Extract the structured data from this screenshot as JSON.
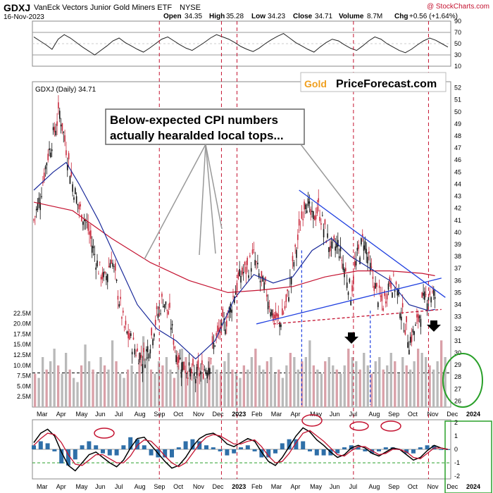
{
  "header": {
    "ticker": "GDXJ",
    "name": "VanEck Vectors Junior Gold Miners ETF",
    "exchange": "NYSE",
    "watermark": "@ StockCharts.com",
    "date": "16-Nov-2023",
    "open_label": "Open",
    "open": "34.35",
    "high_label": "High",
    "high": "35.28",
    "low_label": "Low",
    "low": "34.23",
    "close_label": "Close",
    "close": "34.71",
    "volume_label": "Volume",
    "volume": "8.7M",
    "chg_label": "Chg",
    "chg": "+0.56 (+1.64%)"
  },
  "logo": {
    "part1": "Gold",
    "part2": "PriceForecast.com"
  },
  "price_label": "GDXJ (Daily) 34.71",
  "annotation": "Below-expected CPI numbers\nactually hearalded local tops...",
  "colors": {
    "up": "#c8283c",
    "down": "#111111",
    "ma50": "#1a2a9a",
    "ma200": "#c41230",
    "trend": "#1f3fe0",
    "circle": "#2aa02a",
    "cpi": "#c41230"
  },
  "chart_data": [
    {
      "type": "line",
      "panel": "rsi",
      "y_ticks": [
        90,
        70,
        50,
        30,
        10
      ],
      "levels": [
        70,
        30
      ],
      "ylim": [
        10,
        90
      ],
      "values": [
        62,
        55,
        48,
        40,
        58,
        66,
        60,
        52,
        44,
        37,
        30,
        38,
        46,
        55,
        60,
        52,
        46,
        40,
        35,
        42,
        50,
        58,
        62,
        55,
        48,
        42,
        38,
        45,
        52,
        60,
        66,
        62,
        58,
        52,
        45,
        40,
        36,
        42,
        50,
        57,
        63,
        68,
        60,
        52,
        46,
        40,
        35,
        44,
        52,
        58,
        55,
        48,
        42,
        38,
        46,
        55,
        62,
        58,
        50,
        44,
        38,
        34,
        40,
        48,
        55,
        60,
        56,
        50,
        44
      ]
    },
    {
      "type": "candlestick",
      "panel": "price",
      "title": "GDXJ (Daily) 34.71",
      "y_ticks": [
        52,
        51,
        50,
        49,
        48,
        47,
        46,
        45,
        44,
        43,
        42,
        41,
        40,
        39,
        38,
        37,
        36,
        35,
        34,
        33,
        32,
        31,
        30,
        29,
        28,
        27,
        26
      ],
      "ylim": [
        25.5,
        52.5
      ],
      "x_labels": [
        "Mar",
        "Apr",
        "May",
        "Jun",
        "Jul",
        "Aug",
        "Sep",
        "Oct",
        "Nov",
        "Dec",
        "2023",
        "Feb",
        "Mar",
        "Apr",
        "May",
        "Jun",
        "Jul",
        "Aug",
        "Sep",
        "Oct",
        "Nov",
        "Dec",
        "2024"
      ],
      "close_path": [
        [
          0,
          41
        ],
        [
          5,
          43
        ],
        [
          10,
          46
        ],
        [
          15,
          48
        ],
        [
          20,
          50
        ],
        [
          25,
          47
        ],
        [
          30,
          44
        ],
        [
          35,
          42
        ],
        [
          40,
          41
        ],
        [
          45,
          39
        ],
        [
          50,
          37
        ],
        [
          55,
          36
        ],
        [
          60,
          38
        ],
        [
          65,
          35
        ],
        [
          70,
          32
        ],
        [
          75,
          31
        ],
        [
          80,
          30
        ],
        [
          85,
          29.5
        ],
        [
          90,
          31
        ],
        [
          95,
          33
        ],
        [
          100,
          34.5
        ],
        [
          105,
          33
        ],
        [
          110,
          30
        ],
        [
          115,
          29
        ],
        [
          120,
          28.5
        ],
        [
          125,
          28
        ],
        [
          130,
          28.5
        ],
        [
          135,
          29
        ],
        [
          140,
          31
        ],
        [
          145,
          32
        ],
        [
          150,
          33
        ],
        [
          155,
          35
        ],
        [
          160,
          36.5
        ],
        [
          165,
          37
        ],
        [
          170,
          38
        ],
        [
          175,
          36
        ],
        [
          180,
          35
        ],
        [
          185,
          33
        ],
        [
          190,
          32.5
        ],
        [
          195,
          34
        ],
        [
          200,
          37
        ],
        [
          205,
          40
        ],
        [
          210,
          43
        ],
        [
          215,
          41
        ],
        [
          220,
          42
        ],
        [
          225,
          40
        ],
        [
          230,
          38.5
        ],
        [
          235,
          39
        ],
        [
          240,
          37
        ],
        [
          245,
          35
        ],
        [
          250,
          38
        ],
        [
          255,
          39.5
        ],
        [
          260,
          37
        ],
        [
          265,
          35
        ],
        [
          270,
          34
        ],
        [
          275,
          36
        ],
        [
          280,
          35.5
        ],
        [
          285,
          33
        ],
        [
          290,
          31
        ],
        [
          295,
          32
        ],
        [
          300,
          34
        ],
        [
          305,
          35
        ],
        [
          310,
          34.71
        ]
      ],
      "ma50_path": [
        [
          0,
          43.5
        ],
        [
          15,
          45
        ],
        [
          25,
          45.8
        ],
        [
          35,
          44
        ],
        [
          50,
          41
        ],
        [
          65,
          37.5
        ],
        [
          80,
          34
        ],
        [
          95,
          32
        ],
        [
          110,
          31
        ],
        [
          125,
          29.5
        ],
        [
          140,
          31
        ],
        [
          155,
          34.5
        ],
        [
          170,
          36.5
        ],
        [
          185,
          35.8
        ],
        [
          200,
          36.3
        ],
        [
          215,
          38.5
        ],
        [
          230,
          39.5
        ],
        [
          245,
          38
        ],
        [
          260,
          37
        ],
        [
          275,
          36
        ],
        [
          290,
          34
        ],
        [
          305,
          33.5
        ],
        [
          310,
          33.6
        ]
      ],
      "ma200_path": [
        [
          0,
          42.5
        ],
        [
          30,
          41.8
        ],
        [
          60,
          39.5
        ],
        [
          90,
          37.5
        ],
        [
          120,
          36
        ],
        [
          150,
          35
        ],
        [
          175,
          35.2
        ],
        [
          200,
          35.5
        ],
        [
          225,
          36.3
        ],
        [
          250,
          36.8
        ],
        [
          275,
          36.8
        ],
        [
          300,
          36.6
        ],
        [
          310,
          36.4
        ]
      ],
      "trendlines": [
        {
          "from": [
            205,
            43.5
          ],
          "to": [
            318,
            34.6
          ]
        },
        {
          "from": [
            172,
            32.4
          ],
          "to": [
            315,
            36.2
          ]
        },
        {
          "from": [
            185,
            32.4
          ],
          "to": [
            315,
            33.6
          ],
          "dashed": true
        }
      ],
      "cpi_marks": [
        97,
        145,
        157,
        247,
        305
      ],
      "dashed_blue": [
        [
          207,
          38.5
        ],
        [
          260,
          33.5
        ]
      ]
    },
    {
      "type": "bar",
      "panel": "volume",
      "y_ticks": [
        "22.5M",
        "20.0M",
        "17.5M",
        "15.0M",
        "12.5M",
        "10.0M",
        "7.5M",
        "5.0M",
        "2.5M"
      ],
      "ylim": [
        0,
        25
      ],
      "threshold": 8.2,
      "values": [
        8,
        7,
        12,
        9,
        11,
        14,
        10,
        8,
        13,
        9,
        7,
        6,
        10,
        15,
        11,
        9,
        8,
        12,
        10,
        9,
        16,
        11,
        8,
        7,
        9,
        10,
        8,
        13,
        17,
        12,
        9,
        8,
        11,
        10,
        12,
        9,
        7,
        10,
        14,
        12,
        9,
        8,
        11,
        8,
        7,
        12,
        10,
        9,
        8,
        11,
        13,
        9,
        8,
        7,
        10,
        9,
        12,
        14,
        10,
        9,
        11,
        12,
        8,
        9,
        7,
        10,
        13,
        12,
        9,
        11,
        12,
        16,
        10,
        9,
        8,
        11,
        12,
        10,
        9,
        8,
        10,
        14,
        12,
        11,
        9,
        13,
        10,
        8,
        11,
        12,
        9,
        10,
        13,
        11,
        8,
        12,
        10,
        9,
        11,
        14,
        13,
        12,
        10,
        9,
        11,
        16,
        12
      ]
    },
    {
      "type": "line",
      "panel": "macd",
      "y_ticks": [
        "2",
        "1",
        "0",
        "-1",
        "-2"
      ],
      "ylim": [
        -2.2,
        2.2
      ],
      "macd": [
        0.5,
        1.2,
        1.5,
        1.0,
        -0.2,
        -1.2,
        -1.6,
        -1.0,
        -0.4,
        -0.2,
        -0.6,
        -1.0,
        -1.3,
        -0.8,
        0.1,
        0.8,
        0.9,
        0.3,
        -0.3,
        -0.9,
        -1.4,
        -1.2,
        -0.6,
        0.2,
        0.8,
        1.1,
        1.2,
        0.9,
        0.4,
        0.2,
        0.5,
        0.8,
        0.6,
        -0.2,
        -0.9,
        -1.2,
        -0.6,
        0.2,
        1.0,
        1.6,
        1.3,
        0.7,
        0.3,
        -0.2,
        -0.6,
        -0.4,
        0.1,
        0.3,
        0.1,
        -0.3,
        -0.5,
        -0.2,
        0.1,
        0.0,
        -0.4,
        -0.8,
        -0.6,
        -0.1,
        0.3,
        0.1,
        0.0
      ],
      "signal": [
        0.3,
        0.8,
        1.2,
        1.1,
        0.5,
        -0.4,
        -1.1,
        -1.2,
        -0.8,
        -0.4,
        -0.4,
        -0.7,
        -1.0,
        -1.0,
        -0.5,
        0.3,
        0.7,
        0.6,
        0.1,
        -0.5,
        -1.0,
        -1.3,
        -1.0,
        -0.3,
        0.4,
        0.9,
        1.1,
        1.0,
        0.7,
        0.4,
        0.4,
        0.6,
        0.7,
        0.2,
        -0.5,
        -1.0,
        -0.9,
        -0.3,
        0.5,
        1.2,
        1.4,
        1.0,
        0.6,
        0.1,
        -0.4,
        -0.5,
        -0.1,
        0.2,
        0.2,
        -0.1,
        -0.4,
        -0.3,
        0.0,
        0.0,
        -0.2,
        -0.6,
        -0.7,
        -0.3,
        0.1,
        0.1,
        0.0
      ]
    }
  ]
}
